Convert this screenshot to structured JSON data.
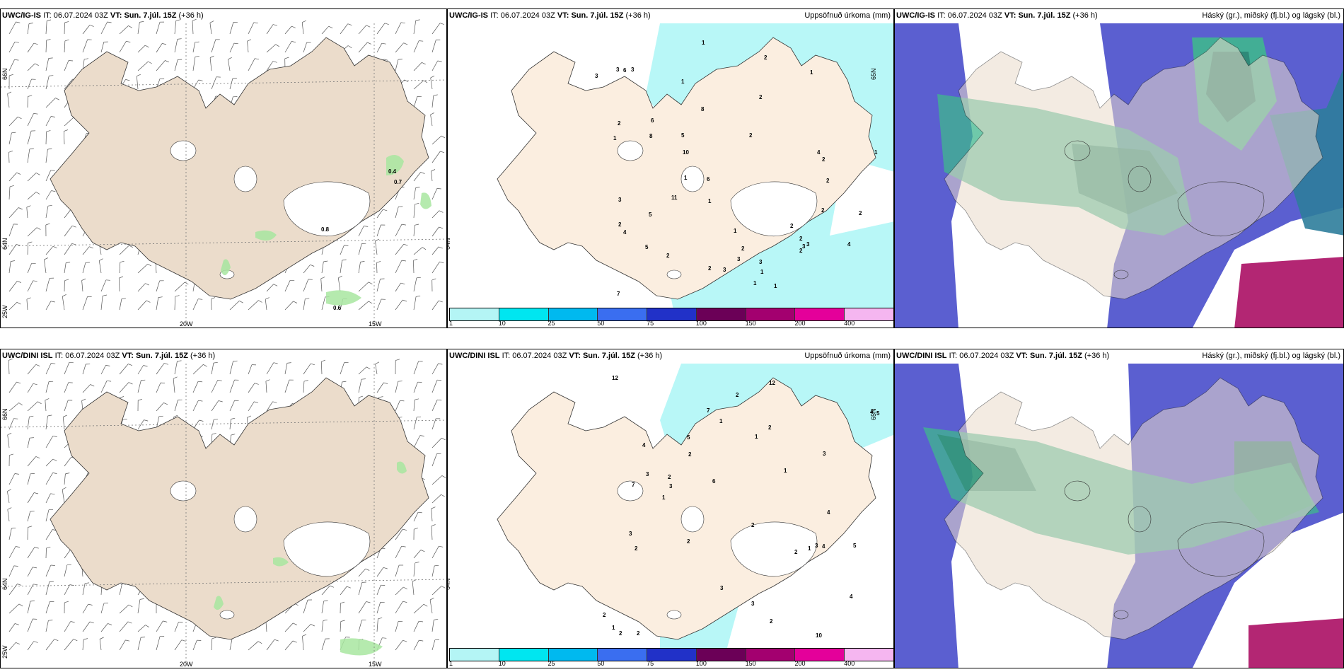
{
  "panels": [
    {
      "id": "p1",
      "model": "UWC/IG-IS",
      "it_label": "IT:",
      "it": "06.07.2024 03Z",
      "vt_label": "VT:",
      "vt": "Sun. 7.júl. 15Z",
      "lead": "(+36 h)",
      "title_right": ""
    },
    {
      "id": "p2",
      "model": "UWC/IG-IS",
      "it_label": "IT:",
      "it": "06.07.2024 03Z",
      "vt_label": "VT:",
      "vt": "Sun. 7.júl. 15Z",
      "lead": "(+36 h)",
      "title_right": "Uppsöfnuð úrkoma (mm)"
    },
    {
      "id": "p3",
      "model": "UWC/IG-IS",
      "it_label": "IT:",
      "it": "06.07.2024 03Z",
      "vt_label": "VT:",
      "vt": "Sun. 7.júl. 15Z",
      "lead": "(+36 h)",
      "title_right": "Háský (gr.), miðský (fj.bl.) og lágský (bl.)"
    },
    {
      "id": "p4",
      "model": "UWC/DINI ISL",
      "it_label": "IT:",
      "it": "06.07.2024 03Z",
      "vt_label": "VT:",
      "vt": "Sun. 7.júl. 15Z",
      "lead": "(+36 h)",
      "title_right": ""
    },
    {
      "id": "p5",
      "model": "UWC/DINI ISL",
      "it_label": "IT:",
      "it": "06.07.2024 03Z",
      "vt_label": "VT:",
      "vt": "Sun. 7.júl. 15Z",
      "lead": "(+36 h)",
      "title_right": "Uppsöfnuð úrkoma (mm)"
    },
    {
      "id": "p6",
      "model": "UWC/DINI ISL",
      "it_label": "IT:",
      "it": "06.07.2024 03Z",
      "vt_label": "VT:",
      "vt": "Sun. 7.júl. 15Z",
      "lead": "(+36 h)",
      "title_right": "Háský (gr.), miðský (fj.bl.) og lágský (bl.)"
    }
  ],
  "axes": {
    "lat_66": "66N",
    "lat_64": "64N",
    "lat_65": "65N",
    "lon_20": "20W",
    "lon_15": "15W",
    "lon_25": "25W"
  },
  "wind_labels_top": [
    "0.4",
    "0.7",
    "0.8",
    "0.6"
  ],
  "precip_scale": {
    "labels": [
      "1",
      "10",
      "25",
      "50",
      "75",
      "100",
      "150",
      "200",
      "400"
    ],
    "colors": [
      "#b4f5f5",
      "#00e6f0",
      "#00b9ef",
      "#3a6ef0",
      "#2131c8",
      "#6b0057",
      "#a3006f",
      "#e4009a",
      "#f5b6f0"
    ]
  },
  "colors": {
    "land": "#ebdccb",
    "land_precip": "#fbeee0",
    "light_precip": "#b8f7f7",
    "green_patch": "#a8e6a0",
    "high_cloud": "#5b5fd0",
    "mid_cloud": "#3fb78e",
    "low_cloud": "#a6007a"
  },
  "precip_values_top": [
    "2",
    "2",
    "2",
    "3",
    "1",
    "4",
    "3",
    "3",
    "4",
    "6",
    "5",
    "4",
    "3",
    "1",
    "1",
    "1",
    "2",
    "3",
    "2",
    "2",
    "3",
    "2",
    "8",
    "10",
    "3",
    "2",
    "2",
    "1",
    "1",
    "5",
    "3",
    "2",
    "2",
    "1",
    "2",
    "8",
    "6",
    "3",
    "6",
    "11",
    "7",
    "5",
    "1",
    "2",
    "1",
    "2",
    "2",
    "1",
    "1"
  ],
  "precip_values_bottom": [
    "1",
    "2",
    "2",
    "3",
    "3",
    "3",
    "3",
    "4",
    "3",
    "5",
    "7",
    "5",
    "10",
    "3",
    "1",
    "1",
    "2",
    "2",
    "2",
    "2",
    "2",
    "2",
    "2",
    "12",
    "2",
    "1",
    "1",
    "5",
    "3",
    "2",
    "4",
    "4",
    "12",
    "7",
    "4",
    "2",
    "6",
    "4",
    "1"
  ]
}
